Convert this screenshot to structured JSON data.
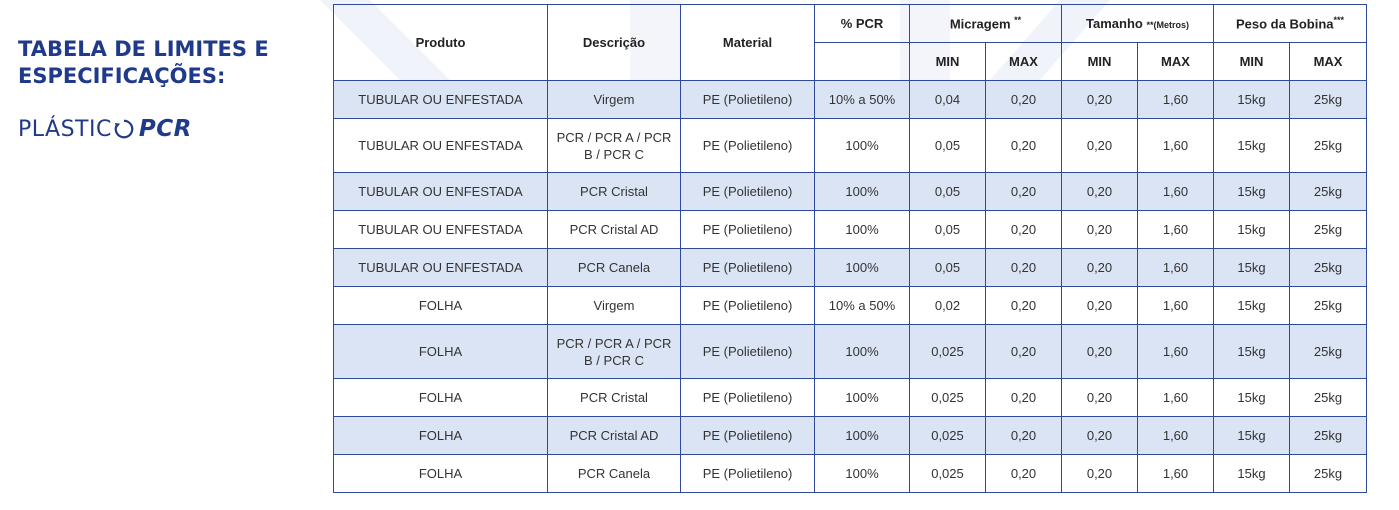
{
  "heading": {
    "line1": "TABELA DE LIMITES E",
    "line2": "ESPECIFICAÇÕES:"
  },
  "brand": {
    "light": "PLÁSTIC",
    "bold": "PCR",
    "icon": "recycle-o-icon",
    "color": "#1f3a8a"
  },
  "table": {
    "headers": {
      "produto": "Produto",
      "descricao": "Descrição",
      "material": "Material",
      "pcr": "% PCR",
      "micragem": "Micragem",
      "micragem_sup": "**",
      "tamanho": "Tamanho",
      "tamanho_note": "**(Metros)",
      "peso": "Peso da Bobina",
      "peso_sup": "***",
      "min": "MIN",
      "max": "MAX"
    },
    "rows": [
      {
        "produto": "TUBULAR OU ENFESTADA",
        "descricao": "Virgem",
        "material": "PE (Polietileno)",
        "pcr": "10% a 50%",
        "mic_min": "0,04",
        "mic_max": "0,20",
        "tam_min": "0,20",
        "tam_max": "1,60",
        "peso_min": "15kg",
        "peso_max": "25kg"
      },
      {
        "produto": "TUBULAR OU ENFESTADA",
        "descricao": "PCR / PCR A / PCR B / PCR C",
        "material": "PE (Polietileno)",
        "pcr": "100%",
        "mic_min": "0,05",
        "mic_max": "0,20",
        "tam_min": "0,20",
        "tam_max": "1,60",
        "peso_min": "15kg",
        "peso_max": "25kg"
      },
      {
        "produto": "TUBULAR OU ENFESTADA",
        "descricao": "PCR Cristal",
        "material": "PE (Polietileno)",
        "pcr": "100%",
        "mic_min": "0,05",
        "mic_max": "0,20",
        "tam_min": "0,20",
        "tam_max": "1,60",
        "peso_min": "15kg",
        "peso_max": "25kg"
      },
      {
        "produto": "TUBULAR OU ENFESTADA",
        "descricao": "PCR Cristal AD",
        "material": "PE (Polietileno)",
        "pcr": "100%",
        "mic_min": "0,05",
        "mic_max": "0,20",
        "tam_min": "0,20",
        "tam_max": "1,60",
        "peso_min": "15kg",
        "peso_max": "25kg"
      },
      {
        "produto": "TUBULAR OU ENFESTADA",
        "descricao": "PCR Canela",
        "material": "PE (Polietileno)",
        "pcr": "100%",
        "mic_min": "0,05",
        "mic_max": "0,20",
        "tam_min": "0,20",
        "tam_max": "1,60",
        "peso_min": "15kg",
        "peso_max": "25kg"
      },
      {
        "produto": "FOLHA",
        "descricao": "Virgem",
        "material": "PE (Polietileno)",
        "pcr": "10% a 50%",
        "mic_min": "0,02",
        "mic_max": "0,20",
        "tam_min": "0,20",
        "tam_max": "1,60",
        "peso_min": "15kg",
        "peso_max": "25kg"
      },
      {
        "produto": "FOLHA",
        "descricao": "PCR / PCR A / PCR B / PCR C",
        "material": "PE (Polietileno)",
        "pcr": "100%",
        "mic_min": "0,025",
        "mic_max": "0,20",
        "tam_min": "0,20",
        "tam_max": "1,60",
        "peso_min": "15kg",
        "peso_max": "25kg"
      },
      {
        "produto": "FOLHA",
        "descricao": "PCR Cristal",
        "material": "PE (Polietileno)",
        "pcr": "100%",
        "mic_min": "0,025",
        "mic_max": "0,20",
        "tam_min": "0,20",
        "tam_max": "1,60",
        "peso_min": "15kg",
        "peso_max": "25kg"
      },
      {
        "produto": "FOLHA",
        "descricao": "PCR Cristal AD",
        "material": "PE (Polietileno)",
        "pcr": "100%",
        "mic_min": "0,025",
        "mic_max": "0,20",
        "tam_min": "0,20",
        "tam_max": "1,60",
        "peso_min": "15kg",
        "peso_max": "25kg"
      },
      {
        "produto": "FOLHA",
        "descricao": "PCR Canela",
        "material": "PE (Polietileno)",
        "pcr": "100%",
        "mic_min": "0,025",
        "mic_max": "0,20",
        "tam_min": "0,20",
        "tam_max": "1,60",
        "peso_min": "15kg",
        "peso_max": "25kg"
      }
    ]
  },
  "colors": {
    "heading": "#1f3a8a",
    "border": "#2f4a9c",
    "stripe": "#dbe4f4",
    "watermark": "#f1f3fa"
  }
}
